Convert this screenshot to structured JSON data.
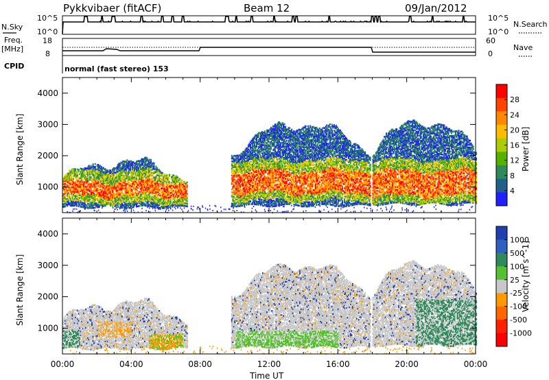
{
  "header": {
    "radar": "Pykkvibaer (fitACF)",
    "beam": "Beam 12",
    "date": "09/Jan/2012"
  },
  "top_panels": {
    "nsky_label": "N.Sky",
    "nsky_ticks": [
      "10^5",
      "10^0"
    ],
    "nsearch_label": "N.Search",
    "nsearch_ticks": [
      "10^5",
      "10^0"
    ],
    "freq_label_1": "Freq.",
    "freq_label_2": "[MHz]",
    "freq_ticks": [
      "18",
      "8"
    ],
    "nave_label": "Nave",
    "nave_ticks": [
      "60",
      "0"
    ],
    "cpid_label": "CPID",
    "cpid_text": "normal (fast stereo) 153"
  },
  "chart_data": [
    {
      "type": "heatmap",
      "title": "",
      "xlabel": "Time UT",
      "ylabel": "Slant Range [km]",
      "xlim": [
        "00:00",
        "24:00"
      ],
      "ylim": [
        180,
        4500
      ],
      "x_ticks": [
        "00:00",
        "04:00",
        "08:00",
        "12:00",
        "16:00",
        "20:00",
        "00:00"
      ],
      "y_ticks": [
        1000,
        2000,
        3000,
        4000
      ],
      "colorbar": {
        "label": "Power [dB]",
        "ticks": [
          "28",
          "24",
          "20",
          "16",
          "12",
          "8",
          "4"
        ],
        "colors": [
          "#ff0000",
          "#ff4400",
          "#ff8800",
          "#ffbb00",
          "#aacc00",
          "#55b000",
          "#2e8a5a",
          "#20608a",
          "#2020ff"
        ]
      },
      "scatter_regions": [
        {
          "t_start": 0.0,
          "t_end": 7.2,
          "r_min": 350,
          "r_max": 1800,
          "core_min": 700,
          "core_max": 1150,
          "note_peak": "red"
        },
        {
          "t_start": 9.8,
          "t_end": 17.9,
          "r_min": 400,
          "r_max": 3000,
          "core_min": 800,
          "core_max": 1500,
          "note_peak": "red"
        },
        {
          "t_start": 18.0,
          "t_end": 24.0,
          "r_min": 450,
          "r_max": 3100,
          "core_min": 700,
          "core_max": 1500,
          "note_peak": "red"
        }
      ]
    },
    {
      "type": "heatmap",
      "title": "",
      "xlabel": "Time UT",
      "ylabel": "Slant Range [km]",
      "xlim": [
        "00:00",
        "24:00"
      ],
      "ylim": [
        180,
        4500
      ],
      "x_ticks": [
        "00:00",
        "04:00",
        "08:00",
        "12:00",
        "16:00",
        "20:00",
        "00:00"
      ],
      "y_ticks": [
        1000,
        2000,
        3000,
        4000
      ],
      "colorbar": {
        "label": "Velocity [m s^-1]",
        "ticks": [
          "1000",
          "500",
          "100",
          "25",
          "-25",
          "-100",
          "-500",
          "-1000"
        ],
        "colors": [
          "#2040b0",
          "#3060c0",
          "#2e8a5a",
          "#55c030",
          "#c8c8c8",
          "#ff9900",
          "#ff6600",
          "#ff2200",
          "#ff0000"
        ]
      }
    }
  ]
}
